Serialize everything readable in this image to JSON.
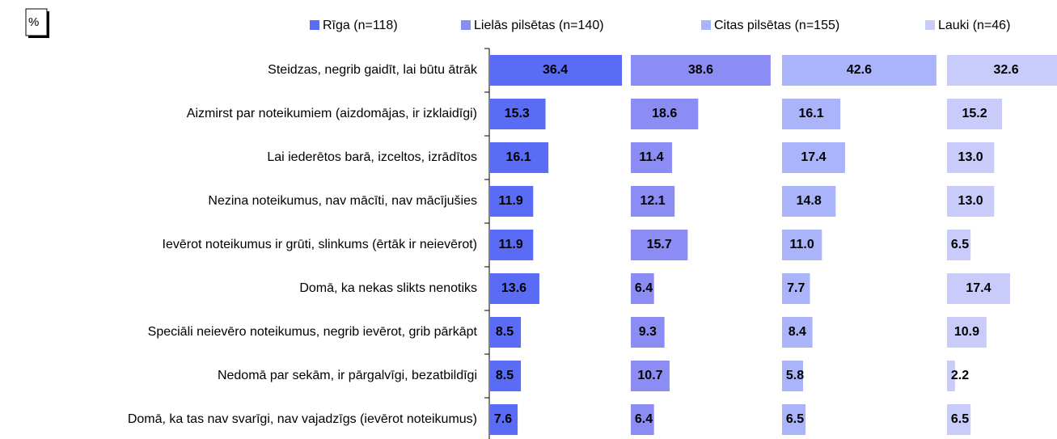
{
  "chart_data": {
    "type": "bar",
    "orientation": "horizontal",
    "unit_label": "%",
    "categories": [
      "Steidzas, negrib gaidīt, lai būtu ātrāk",
      "Aizmirst par noteikumiem (aizdomājas, ir izklaidīgi)",
      "Lai iederētos barā, izceltos, izrādītos",
      "Nezina noteikumus, nav mācīti, nav mācījušies",
      "Ievērot noteikumus ir grūti, slinkums (ērtāk ir neievērot)",
      "Domā, ka nekas slikts nenotiks",
      "Speciāli neievēro noteikumus, negrib ievērot, grib pārkāpt",
      "Nedomā par sekām, ir pārgalvīgi, bezatbildīgi",
      "Domā, ka tas nav svarīgi, nav vajadzīgs (ievērot noteikumus)"
    ],
    "series": [
      {
        "name": "Rīga (n=118)",
        "color": "#5a6cf6",
        "values": [
          36.4,
          15.3,
          16.1,
          11.9,
          11.9,
          13.6,
          8.5,
          8.5,
          7.6
        ],
        "value_labels": [
          "36.4",
          "15.3",
          "16.1",
          "11.9",
          "11.9",
          "13.6",
          "8.5",
          "8.5",
          "7.6"
        ]
      },
      {
        "name": "Lielās pilsētas (n=140)",
        "color": "#8c8cf5",
        "values": [
          38.6,
          18.6,
          11.4,
          12.1,
          15.7,
          6.4,
          9.3,
          10.7,
          6.4
        ],
        "value_labels": [
          "38.6",
          "18.6",
          "11.4",
          "12.1",
          "15.7",
          "6.4",
          "9.3",
          "10.7",
          "6.4"
        ]
      },
      {
        "name": "Citas pilsētas (n=155)",
        "color": "#aab4fb",
        "values": [
          42.6,
          16.1,
          17.4,
          14.8,
          11.0,
          7.7,
          8.4,
          5.8,
          6.5
        ],
        "value_labels": [
          "42.6",
          "16.1",
          "17.4",
          "14.8",
          "11.0",
          "7.7",
          "8.4",
          "5.8",
          "6.5"
        ]
      },
      {
        "name": "Lauki (n=46)",
        "color": "#c9ccfb",
        "values": [
          32.6,
          15.2,
          13.0,
          13.0,
          6.5,
          17.4,
          10.9,
          2.2,
          6.5
        ],
        "value_labels": [
          "32.6",
          "15.2",
          "13.0",
          "13.0",
          "6.5",
          "17.4",
          "10.9",
          "2.2",
          "6.5"
        ]
      }
    ]
  }
}
